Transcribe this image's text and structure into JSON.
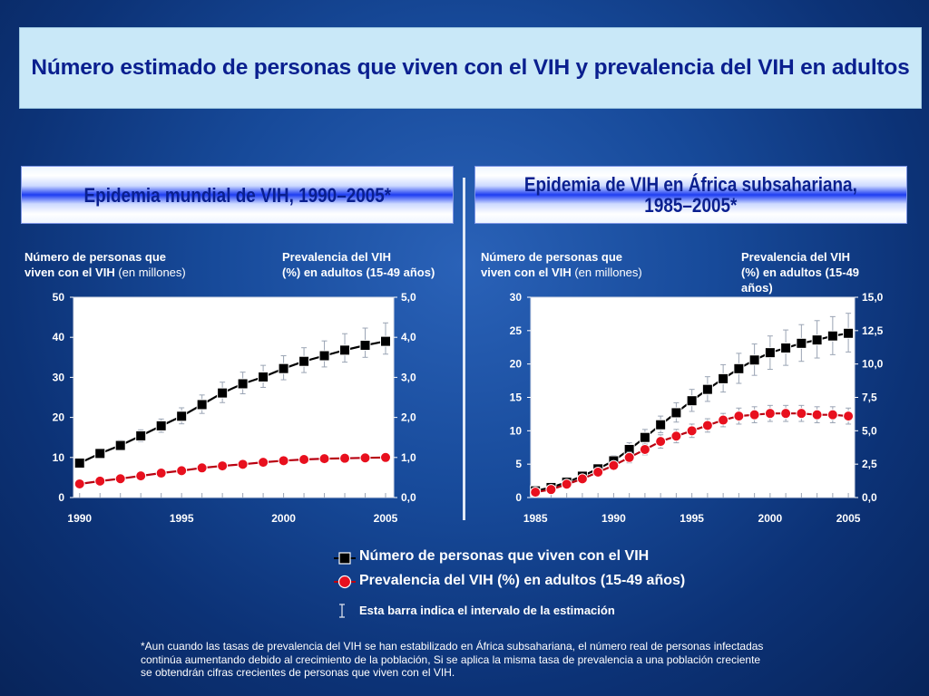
{
  "title": "Número estimado de personas que viven con el VIH y prevalencia del VIH en adultos",
  "panels": {
    "left": {
      "title": "Epidemia mundial de VIH, 1990–2005*",
      "left_axis_title_1": "Número de personas que",
      "left_axis_title_2": "viven con el VIH",
      "left_axis_title_3": "(en millones)",
      "right_axis_title_1": "Prevalencia del VIH",
      "right_axis_title_2": "(%) en adultos (15-49 años)"
    },
    "right": {
      "title_line1": "Epidemia de VIH en África subsahariana,",
      "title_line2": "1985–2005*",
      "left_axis_title_1": "Número de personas que",
      "left_axis_title_2": "viven con el VIH",
      "left_axis_title_3": "(en millones)",
      "right_axis_title_1": "Prevalencia del VIH",
      "right_axis_title_2": "(%) en adultos (15-49",
      "right_axis_title_3": "años)"
    }
  },
  "legend": {
    "people": "Número de personas que viven con el VIH",
    "prevalence": "Prevalencia del VIH (%) en adultos (15-49 años)",
    "bar": "Esta barra indica el intervalo de la estimación"
  },
  "footnote": "*Aun cuando las tasas de prevalencia del VIH se han estabilizado en África subsahariana, el número real de personas infectadas continúa aumentando debido al crecimiento de la población, Si se aplica la misma tasa de prevalencia a una población creciente se obtendrán cifras crecientes de personas que viven con el VIH.",
  "colors": {
    "people_marker": "#000000",
    "prevalence_marker": "#e8101e",
    "people_line": "#000000",
    "prevalence_line": "#b80010",
    "error_bar": "#9aa4b4",
    "plot_bg": "#ffffff",
    "title_text": "#0a1f8f"
  },
  "chart_data": [
    {
      "type": "line",
      "title": "Epidemia mundial de VIH, 1990–2005*",
      "x": [
        1990,
        1991,
        1992,
        1993,
        1994,
        1995,
        1996,
        1997,
        1998,
        1999,
        2000,
        2001,
        2002,
        2003,
        2004,
        2005
      ],
      "xticks": [
        1990,
        1995,
        2000,
        2005
      ],
      "xlim": [
        1989.7,
        2005.4
      ],
      "y_left": {
        "label": "Número de personas que viven con el VIH (en millones)",
        "lim": [
          0,
          50
        ],
        "ticks": [
          "0",
          "10",
          "20",
          "30",
          "40",
          "50"
        ]
      },
      "y_right": {
        "label": "Prevalencia del VIH (%) en adultos (15-49 años)",
        "lim": [
          0,
          5
        ],
        "ticks": [
          "0,0",
          "1,0",
          "2,0",
          "3,0",
          "4,0",
          "5,0"
        ]
      },
      "series": [
        {
          "name": "Número de personas que viven con el VIH",
          "axis": "left",
          "values": [
            8.6,
            11.0,
            13.0,
            15.4,
            17.9,
            20.3,
            23.2,
            26.1,
            28.4,
            30.1,
            32.2,
            34.0,
            35.4,
            36.8,
            38.0,
            39.0
          ],
          "low": [
            7.7,
            9.9,
            11.8,
            14.0,
            16.3,
            18.4,
            21.0,
            23.7,
            25.9,
            27.5,
            29.4,
            31.2,
            32.6,
            33.8,
            35.0,
            35.8
          ],
          "high": [
            9.6,
            12.2,
            14.3,
            16.9,
            19.6,
            22.4,
            25.6,
            28.8,
            31.3,
            33.0,
            35.4,
            37.4,
            39.1,
            40.9,
            42.3,
            43.6
          ]
        },
        {
          "name": "Prevalencia del VIH (%) en adultos (15-49 años)",
          "axis": "right",
          "values": [
            0.34,
            0.41,
            0.47,
            0.54,
            0.61,
            0.67,
            0.74,
            0.79,
            0.83,
            0.88,
            0.92,
            0.95,
            0.97,
            0.98,
            0.99,
            1.0
          ],
          "low": [
            0.3,
            0.37,
            0.42,
            0.49,
            0.55,
            0.61,
            0.67,
            0.72,
            0.76,
            0.8,
            0.84,
            0.87,
            0.88,
            0.89,
            0.9,
            0.91
          ],
          "high": [
            0.38,
            0.46,
            0.52,
            0.6,
            0.67,
            0.74,
            0.81,
            0.87,
            0.91,
            0.96,
            1.0,
            1.04,
            1.06,
            1.08,
            1.09,
            1.1
          ]
        }
      ]
    },
    {
      "type": "line",
      "title": "Epidemia de VIH en África subsahariana, 1985–2005*",
      "x": [
        1985,
        1986,
        1987,
        1988,
        1989,
        1990,
        1991,
        1992,
        1993,
        1994,
        1995,
        1996,
        1997,
        1998,
        1999,
        2000,
        2001,
        2002,
        2003,
        2004,
        2005
      ],
      "xticks": [
        1985,
        1990,
        1995,
        2000,
        2005
      ],
      "xlim": [
        1984.7,
        2005.4
      ],
      "y_left": {
        "label": "Número de personas que viven con el VIH (en millones)",
        "lim": [
          0,
          30
        ],
        "ticks": [
          "0",
          "5",
          "10",
          "15",
          "20",
          "25",
          "30"
        ]
      },
      "y_right": {
        "label": "Prevalencia del VIH (%) en adultos (15-49 años)",
        "lim": [
          0,
          15
        ],
        "ticks": [
          "0,0",
          "2,5",
          "5,0",
          "7,5",
          "10,0",
          "12,5",
          "15,0"
        ]
      },
      "series": [
        {
          "name": "Número de personas que viven con el VIH",
          "axis": "left",
          "values": [
            1.0,
            1.5,
            2.3,
            3.2,
            4.3,
            5.5,
            7.2,
            9.0,
            10.9,
            12.7,
            14.5,
            16.2,
            17.8,
            19.3,
            20.6,
            21.7,
            22.4,
            23.1,
            23.6,
            24.2,
            24.6
          ],
          "low": [
            0.8,
            1.2,
            1.9,
            2.7,
            3.7,
            4.8,
            6.3,
            8.0,
            9.7,
            11.3,
            12.9,
            14.4,
            15.8,
            17.1,
            18.3,
            19.2,
            19.8,
            20.4,
            20.9,
            21.4,
            21.8
          ],
          "high": [
            1.2,
            1.8,
            2.7,
            3.8,
            5.0,
            6.3,
            8.2,
            10.2,
            12.2,
            14.2,
            16.2,
            18.1,
            19.9,
            21.6,
            23.0,
            24.2,
            25.1,
            25.9,
            26.5,
            27.1,
            27.6
          ]
        },
        {
          "name": "Prevalencia del VIH (%) en adultos (15-49 años)",
          "axis": "right",
          "values": [
            0.4,
            0.6,
            1.0,
            1.4,
            1.9,
            2.4,
            3.0,
            3.6,
            4.2,
            4.6,
            5.0,
            5.4,
            5.8,
            6.1,
            6.2,
            6.3,
            6.3,
            6.3,
            6.2,
            6.2,
            6.1
          ],
          "low": [
            0.3,
            0.5,
            0.8,
            1.2,
            1.6,
            2.1,
            2.6,
            3.2,
            3.7,
            4.1,
            4.5,
            4.9,
            5.3,
            5.5,
            5.6,
            5.7,
            5.7,
            5.7,
            5.6,
            5.6,
            5.5
          ],
          "high": [
            0.5,
            0.7,
            1.2,
            1.6,
            2.2,
            2.7,
            3.4,
            4.0,
            4.7,
            5.1,
            5.5,
            5.9,
            6.3,
            6.7,
            6.8,
            6.9,
            6.9,
            6.9,
            6.8,
            6.8,
            6.7
          ]
        }
      ]
    }
  ]
}
